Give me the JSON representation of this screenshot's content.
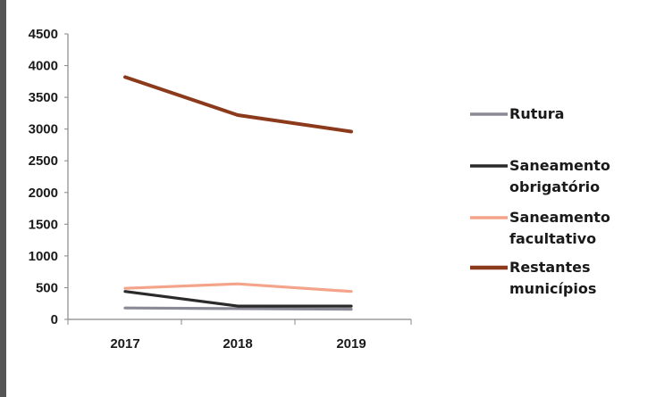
{
  "chart_data": {
    "type": "line",
    "categories": [
      "2017",
      "2018",
      "2019"
    ],
    "yticks": [
      "0",
      "500",
      "1000",
      "1500",
      "2000",
      "2500",
      "3000",
      "3500",
      "4000",
      "4500"
    ],
    "ylim": [
      0,
      4500
    ],
    "legend_position": "right",
    "series": [
      {
        "name": [
          "Rutura"
        ],
        "values": [
          180,
          170,
          160
        ],
        "color": "#8a8a96"
      },
      {
        "name": [
          "Saneamento",
          "obrigatório"
        ],
        "values": [
          440,
          210,
          210
        ],
        "color": "#2a2a2a"
      },
      {
        "name": [
          "Saneamento",
          "facultativo"
        ],
        "values": [
          490,
          560,
          440
        ],
        "color": "#f3a48a"
      },
      {
        "name": [
          "Restantes",
          "municípios"
        ],
        "values": [
          3820,
          3220,
          2960
        ],
        "color": "#8c3a1c"
      }
    ]
  }
}
